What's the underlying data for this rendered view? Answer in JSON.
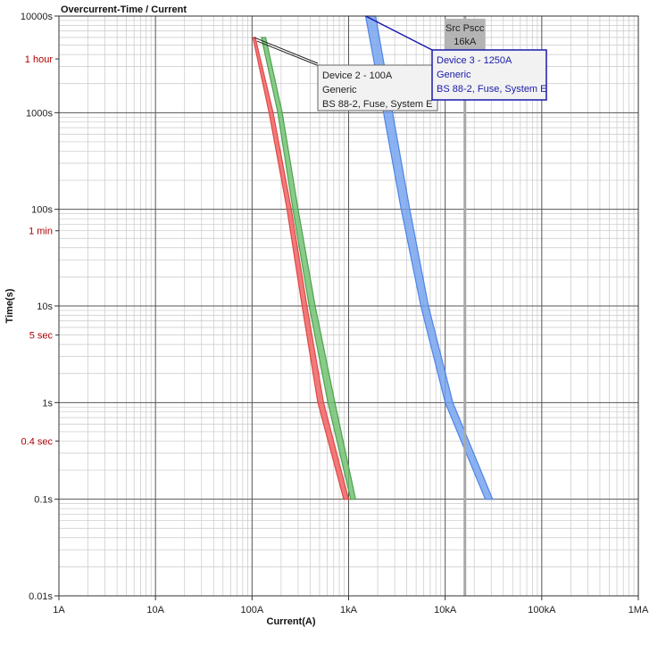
{
  "chart_data": {
    "type": "line",
    "title": "Overcurrent-Time / Current",
    "xlabel": "Current(A)",
    "ylabel": "Time(s)",
    "x_scale": "log",
    "y_scale": "log",
    "xlim": [
      1,
      1000000
    ],
    "ylim": [
      0.01,
      10000
    ],
    "grid": true,
    "x_ticks": [
      {
        "value": 1,
        "label": "1A"
      },
      {
        "value": 10,
        "label": "10A"
      },
      {
        "value": 100,
        "label": "100A"
      },
      {
        "value": 1000,
        "label": "1kA"
      },
      {
        "value": 10000,
        "label": "10kA"
      },
      {
        "value": 100000,
        "label": "100kA"
      },
      {
        "value": 1000000,
        "label": "1MA"
      }
    ],
    "y_ticks": [
      {
        "value": 0.01,
        "label": "0.01s"
      },
      {
        "value": 0.1,
        "label": "0.1s"
      },
      {
        "value": 1,
        "label": "1s"
      },
      {
        "value": 10,
        "label": "10s"
      },
      {
        "value": 100,
        "label": "100s"
      },
      {
        "value": 1000,
        "label": "1000s"
      },
      {
        "value": 10000,
        "label": "10000s"
      }
    ],
    "y_time_marks": [
      {
        "value": 3600,
        "label": "1 hour"
      },
      {
        "value": 60,
        "label": "1 min"
      },
      {
        "value": 5,
        "label": "5 sec"
      },
      {
        "value": 0.4,
        "label": "0.4 sec"
      }
    ],
    "series": [
      {
        "color": "#ef5a5a",
        "edge_color": "#e04848",
        "lower": [
          [
            102,
            6000
          ],
          [
            150,
            1000
          ],
          [
            230,
            100
          ],
          [
            330,
            10
          ],
          [
            480,
            1
          ],
          [
            890,
            0.1
          ]
        ],
        "upper": [
          [
            108,
            6000
          ],
          [
            165,
            1000
          ],
          [
            255,
            100
          ],
          [
            370,
            10
          ],
          [
            550,
            1
          ],
          [
            1000,
            0.1
          ]
        ]
      },
      {
        "color": "#6cbf6c",
        "edge_color": "#4fa24f",
        "lower": [
          [
            125,
            6000
          ],
          [
            185,
            1000
          ],
          [
            265,
            100
          ],
          [
            390,
            10
          ],
          [
            610,
            1
          ],
          [
            1050,
            0.1
          ]
        ],
        "upper": [
          [
            138,
            6000
          ],
          [
            205,
            1000
          ],
          [
            300,
            100
          ],
          [
            450,
            10
          ],
          [
            720,
            1
          ],
          [
            1180,
            0.1
          ]
        ]
      },
      {
        "color": "#6f9fef",
        "edge_color": "#4e85e6",
        "lower": [
          [
            1500,
            10000
          ],
          [
            2300,
            1000
          ],
          [
            3500,
            100
          ],
          [
            5600,
            10
          ],
          [
            10000,
            1
          ],
          [
            26000,
            0.1
          ]
        ],
        "upper": [
          [
            1900,
            10000
          ],
          [
            2850,
            1000
          ],
          [
            4300,
            100
          ],
          [
            6700,
            10
          ],
          [
            12000,
            1
          ],
          [
            31000,
            0.1
          ]
        ]
      }
    ],
    "pscc": {
      "value": 16000,
      "label_line1": "Src Pscc",
      "label_line2": "16kA"
    },
    "annotations": [
      {
        "device": "Device 2 - 100A",
        "type": "Generic",
        "standard": "BS 88-2, Fuse, System E",
        "anchor": [
          125,
          6000
        ],
        "color": "#222222",
        "border": "#666666"
      },
      {
        "device": "Device 3 - 1250A",
        "type": "Generic",
        "standard": "BS 88-2, Fuse, System E",
        "anchor": [
          1500,
          10000
        ],
        "color": "#1a1aaa",
        "border": "#1a1aaa"
      }
    ]
  }
}
